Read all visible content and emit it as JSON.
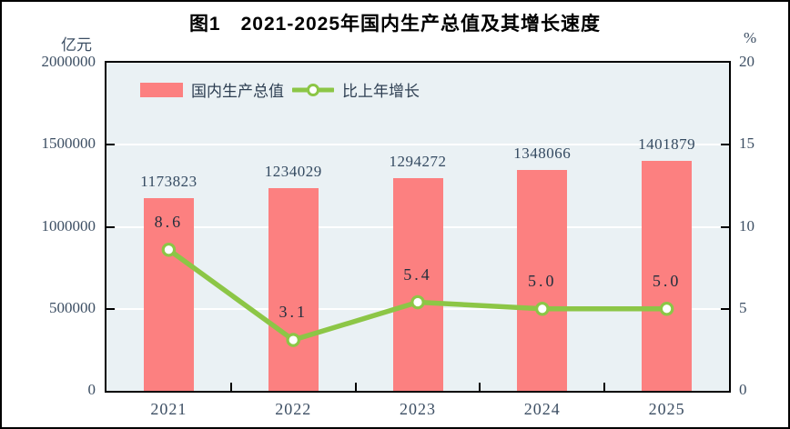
{
  "title": "图1　2021-2025年国内生产总值及其增长速度",
  "left_axis": {
    "unit": "亿元",
    "ticks": [
      2000000,
      1500000,
      1000000,
      500000,
      0
    ],
    "max": 2000000
  },
  "right_axis": {
    "unit": "%",
    "ticks": [
      20,
      15,
      10,
      5,
      0
    ],
    "max": 20
  },
  "legend": [
    {
      "label": "国内生产总值",
      "type": "bar"
    },
    {
      "label": "比上年增长",
      "type": "line"
    }
  ],
  "colors": {
    "bar": "#FC8080",
    "line": "#8CC646",
    "marker_fill": "#FFFFFF",
    "plot_bg": "#EAF1F4",
    "grid": "#FFFFFF",
    "axis_text": "#3C4E63",
    "title_text": "#000000"
  },
  "chart_data": {
    "type": "bar+line",
    "title": "图1　2021-2025年国内生产总值及其增长速度",
    "categories": [
      "2021",
      "2022",
      "2023",
      "2024",
      "2025"
    ],
    "series": [
      {
        "name": "国内生产总值",
        "type": "bar",
        "axis": "left",
        "unit": "亿元",
        "values": [
          1173823,
          1234029,
          1294272,
          1348066,
          1401879
        ]
      },
      {
        "name": "比上年增长",
        "type": "line",
        "axis": "right",
        "unit": "%",
        "values": [
          8.6,
          3.1,
          5.4,
          5.0,
          5.0
        ]
      }
    ],
    "bar_labels": [
      "1173823",
      "1234029",
      "1294272",
      "1348066",
      "1401879"
    ],
    "line_labels": [
      "8.6",
      "3.1",
      "5.4",
      "5.0",
      "5.0"
    ],
    "left_ylim": [
      0,
      2000000
    ],
    "right_ylim": [
      0,
      20
    ],
    "left_tick_step": 500000,
    "right_tick_step": 5,
    "grid": true,
    "legend_position": "top-left-inside"
  }
}
